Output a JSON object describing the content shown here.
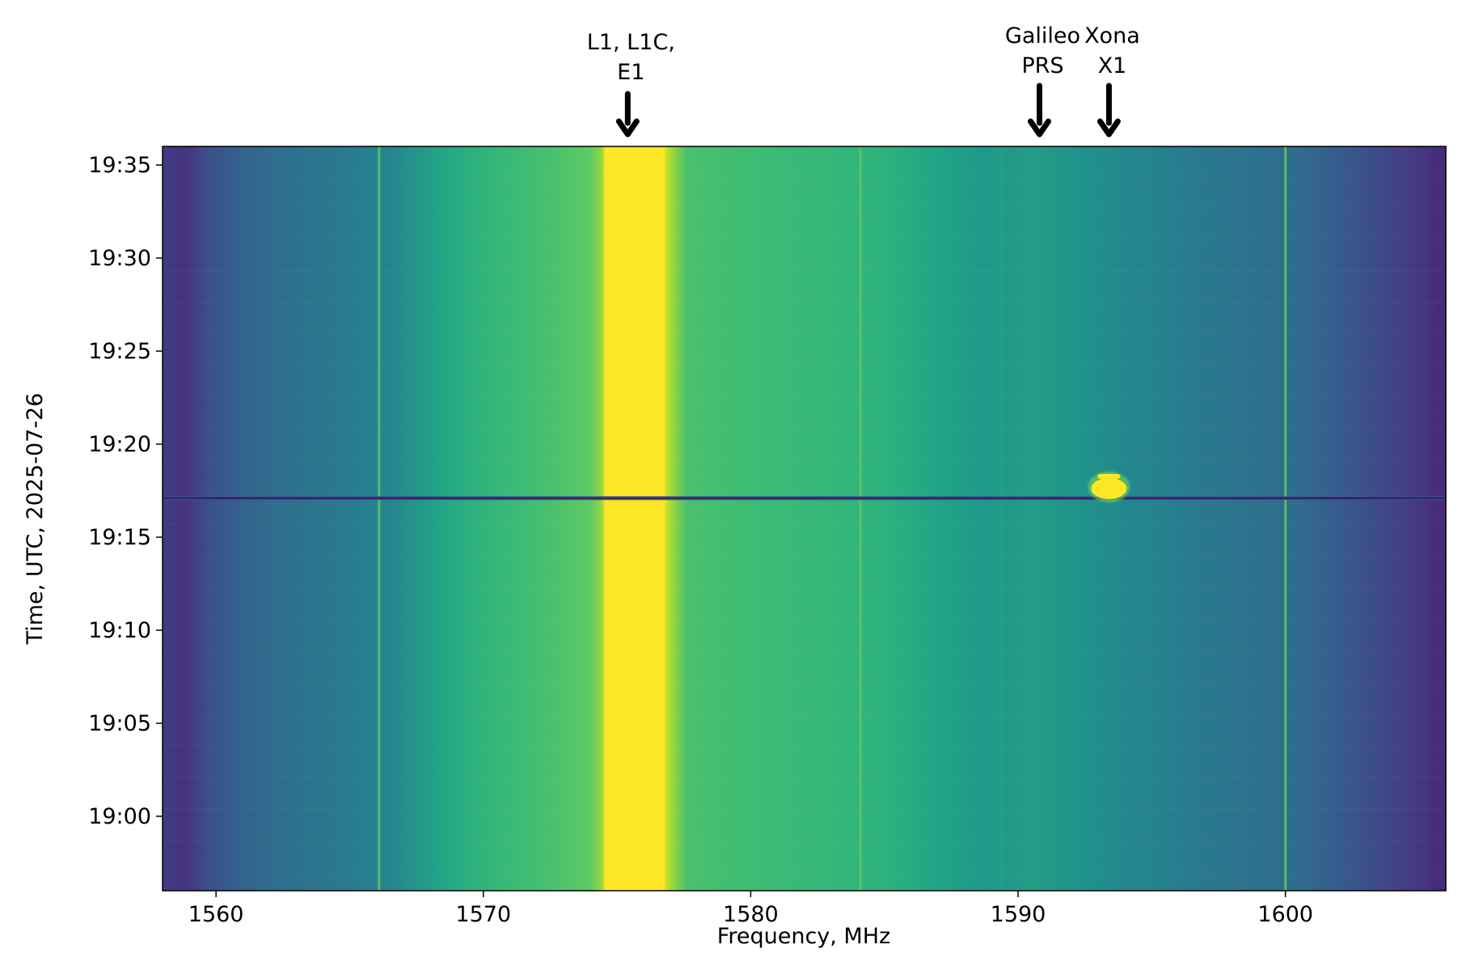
{
  "chart_data": {
    "type": "heatmap",
    "title": "",
    "xlabel": "Frequency, MHz",
    "ylabel": "Time, UTC, 2025-07-26",
    "xlim": [
      1558,
      1606
    ],
    "ylim_minutes": [
      56,
      96
    ],
    "x_ticks": [
      {
        "value": 1560,
        "label": "1560"
      },
      {
        "value": 1570,
        "label": "1570"
      },
      {
        "value": 1580,
        "label": "1580"
      },
      {
        "value": 1590,
        "label": "1590"
      },
      {
        "value": 1600,
        "label": "1600"
      }
    ],
    "y_ticks": [
      {
        "value": 60,
        "label": "19:00"
      },
      {
        "value": 65,
        "label": "19:05"
      },
      {
        "value": 70,
        "label": "19:10"
      },
      {
        "value": 75,
        "label": "19:15"
      },
      {
        "value": 80,
        "label": "19:20"
      },
      {
        "value": 85,
        "label": "19:25"
      },
      {
        "value": 90,
        "label": "19:30"
      },
      {
        "value": 95,
        "label": "19:35"
      }
    ],
    "colormap": "viridis",
    "colors": {
      "low": "#440154",
      "mid_low": "#31688e",
      "mid": "#21918c",
      "mid_high": "#5ec962",
      "high": "#fde725"
    },
    "annotations": [
      {
        "lines": [
          "L1, L1C,",
          "E1"
        ],
        "frequency": 1575.4
      },
      {
        "lines": [
          "Galileo",
          "PRS"
        ],
        "frequency": 1590.8
      },
      {
        "lines": [
          "Xona",
          "X1"
        ],
        "frequency": 1593.4
      }
    ],
    "features": [
      {
        "kind": "band",
        "frequency_range": [
          1574.5,
          1576.8
        ],
        "level": "high"
      },
      {
        "kind": "band",
        "frequency_range": [
          1589.5,
          1592
        ],
        "level": "mid"
      },
      {
        "kind": "spur",
        "frequency": 1566.1,
        "level": "mid_high"
      },
      {
        "kind": "spur",
        "frequency": 1584.1,
        "level": "mid_high"
      },
      {
        "kind": "spur",
        "frequency": 1600.0,
        "level": "mid_high"
      },
      {
        "kind": "dropout",
        "time_minute": 77.1,
        "level": "low"
      },
      {
        "kind": "burst",
        "frequency": 1593.4,
        "time_minute": 77.7,
        "level": "high"
      }
    ]
  }
}
